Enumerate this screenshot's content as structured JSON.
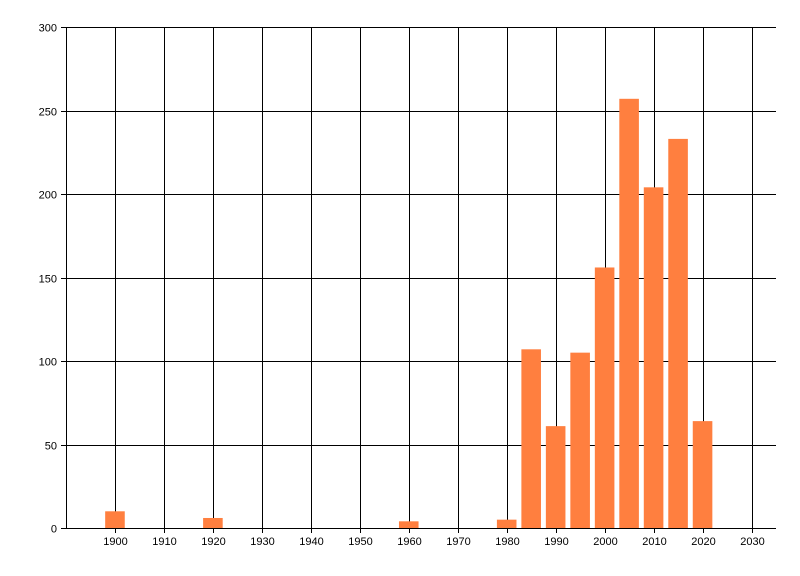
{
  "chart_data": {
    "type": "bar",
    "title": "",
    "xlabel": "",
    "ylabel": "",
    "x": [
      1900,
      1920,
      1960,
      1980,
      1985,
      1990,
      1995,
      2000,
      2005,
      2010,
      2015,
      2020
    ],
    "values": [
      10,
      6,
      4,
      5,
      107,
      61,
      105,
      156,
      257,
      204,
      233,
      64
    ],
    "xlim": [
      1890,
      2035
    ],
    "ylim": [
      0,
      300
    ],
    "x_ticks": [
      1900,
      1910,
      1920,
      1930,
      1940,
      1950,
      1960,
      1970,
      1980,
      1990,
      2000,
      2010,
      2020,
      2030
    ],
    "y_ticks": [
      0,
      50,
      100,
      150,
      200,
      250,
      300
    ],
    "bar_width_years": 4,
    "grid": true,
    "legend": "none",
    "colors": {
      "bar": "#ff7f3f",
      "grid": "#000000",
      "axis": "#000000",
      "text": "#000000"
    }
  }
}
